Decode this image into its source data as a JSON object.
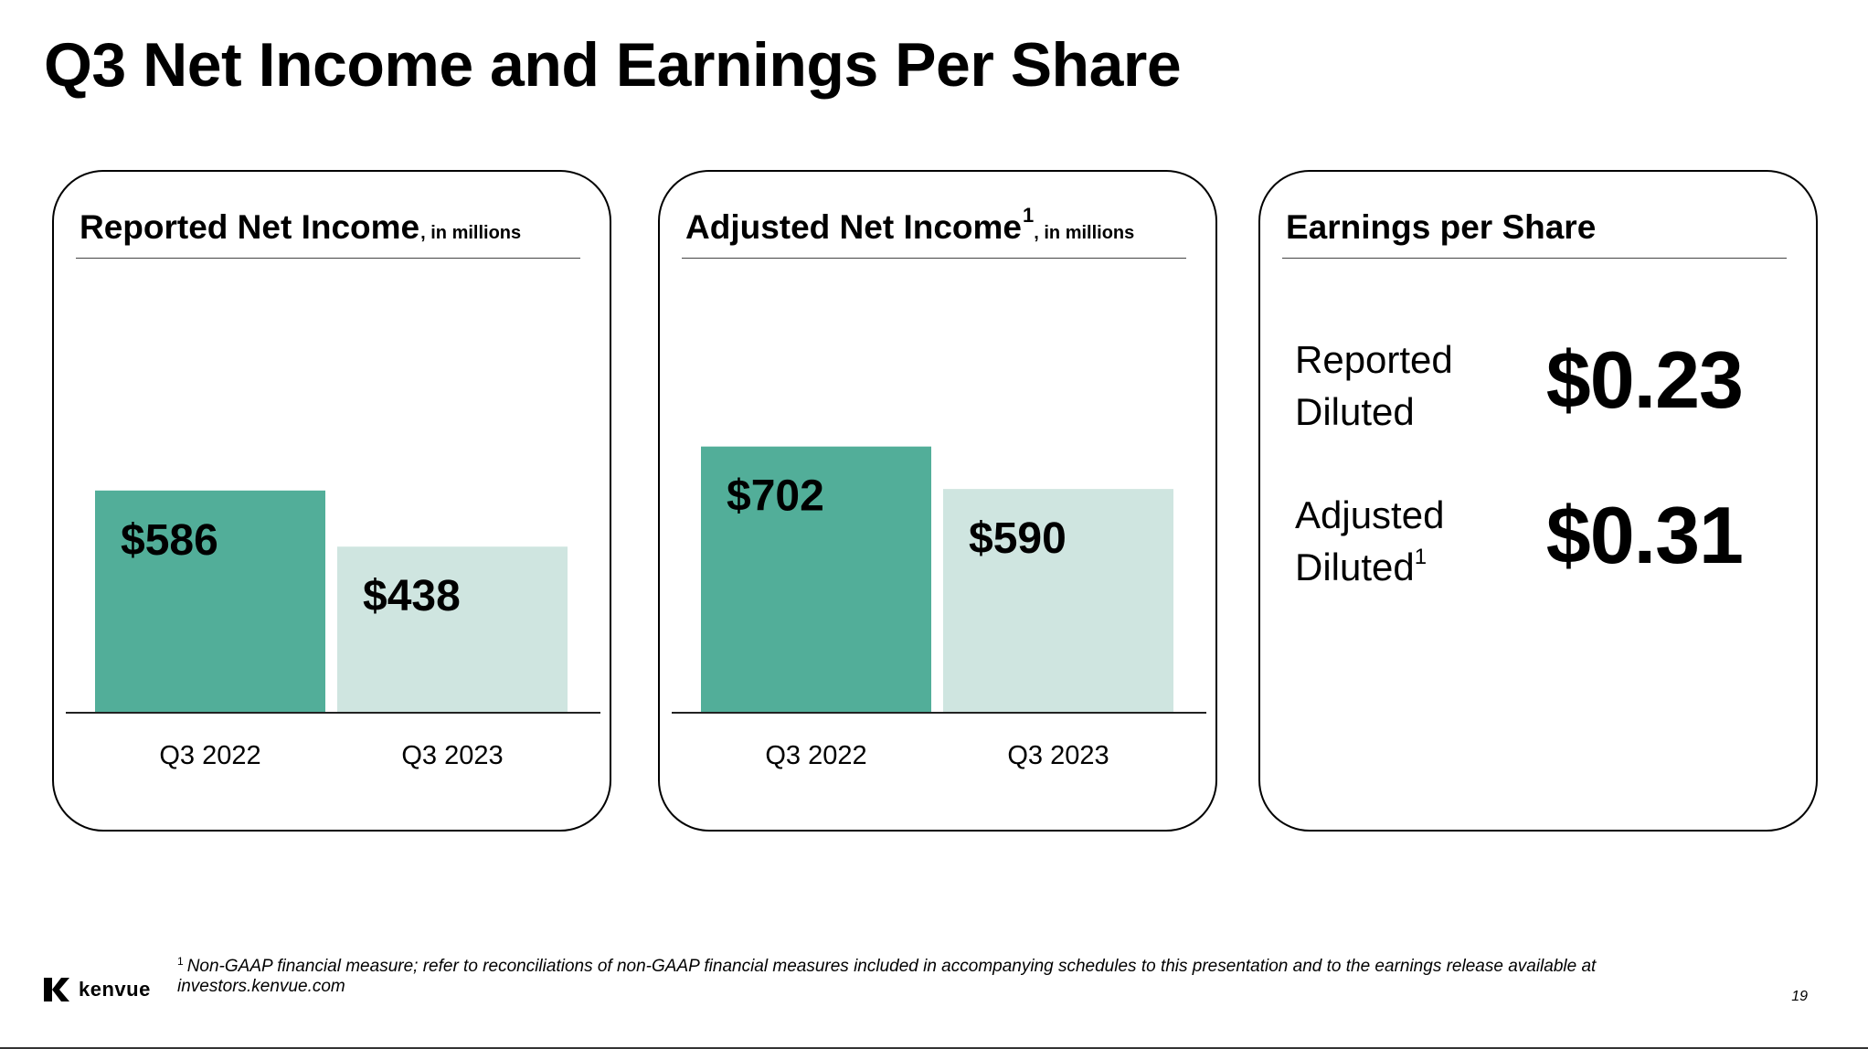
{
  "slide": {
    "title": "Q3 Net Income and Earnings Per Share",
    "page_number": "19",
    "footnote_marker": "1",
    "footnote": "Non-GAAP financial measure; refer to reconciliations of non-GAAP financial measures included in accompanying schedules to this presentation and to the earnings release available at investors.kenvue.com",
    "logo_text": "kenvue"
  },
  "colors": {
    "q3_2022_bar": "#52ae99",
    "q3_2023_bar": "#cfe5e0",
    "axis": "#222222"
  },
  "panels": {
    "reported": {
      "title": "Reported Net Income",
      "superscript": "",
      "unit": ", in millions"
    },
    "adjusted": {
      "title": "Adjusted Net Income",
      "superscript": "1",
      "unit": ", in millions"
    },
    "eps": {
      "title": "Earnings per Share",
      "rows": [
        {
          "label_line1": "Reported",
          "label_line2": "Diluted",
          "superscript": "",
          "value": "$0.23"
        },
        {
          "label_line1": "Adjusted",
          "label_line2": "Diluted",
          "superscript": "1",
          "value": "$0.31"
        }
      ]
    }
  },
  "chart_data": [
    {
      "type": "bar",
      "title": "Reported Net Income, in millions",
      "categories": [
        "Q3 2022",
        "Q3 2023"
      ],
      "values": [
        586,
        438
      ],
      "value_labels": [
        "$586",
        "$438"
      ],
      "ylim": [
        0,
        800
      ],
      "grid": false,
      "legend": "none"
    },
    {
      "type": "bar",
      "title": "Adjusted Net Income, in millions",
      "categories": [
        "Q3 2022",
        "Q3 2023"
      ],
      "values": [
        702,
        590
      ],
      "value_labels": [
        "$702",
        "$590"
      ],
      "ylim": [
        0,
        800
      ],
      "grid": false,
      "legend": "none"
    }
  ]
}
